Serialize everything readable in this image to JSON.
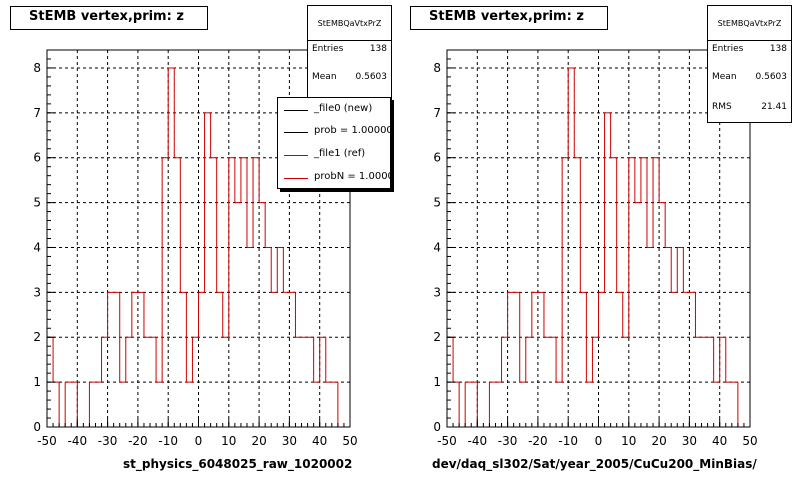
{
  "colors": {
    "hist": "#cc0000",
    "axis": "#000000"
  },
  "panels": [
    {
      "title": "StEMB  vertex,prim: z",
      "stats": {
        "name": "StEMBQaVtxPrZ",
        "rows": [
          {
            "label": "Entries",
            "value": "138"
          },
          {
            "label": "Mean",
            "value": "0.5603"
          }
        ]
      },
      "xlabel": "st_physics_6048025_raw_1020002",
      "legend": [
        {
          "text": "_file0 (new)",
          "color": "#000000"
        },
        {
          "text": "prob = 1.000000",
          "color": "#000000"
        },
        {
          "text": "_file1 (ref)",
          "color": "#cc0000"
        },
        {
          "text": "probN = 1.000000",
          "color": "#cc0000"
        }
      ]
    },
    {
      "title": "StEMB  vertex,prim: z",
      "stats": {
        "name": "StEMBQaVtxPrZ",
        "rows": [
          {
            "label": "Entries",
            "value": "138"
          },
          {
            "label": "Mean",
            "value": "0.5603"
          },
          {
            "label": "RMS",
            "value": "21.41"
          }
        ]
      },
      "xlabel": "dev/daq_sl302/Sat/year_2005/CuCu200_MinBias/"
    }
  ],
  "chart_data": [
    {
      "type": "bar",
      "xlim": [
        -50,
        50
      ],
      "ylim": [
        0,
        8.4
      ],
      "xticks": [
        "-50",
        "-40",
        "-30",
        "-20",
        "-10",
        "0",
        "10",
        "20",
        "30",
        "40",
        "50"
      ],
      "yticks": [
        "0",
        "1",
        "2",
        "3",
        "4",
        "5",
        "6",
        "7",
        "8"
      ],
      "grid": true,
      "bin_width": 2,
      "values": [
        2,
        1,
        0,
        1,
        1,
        0,
        0,
        1,
        1,
        2,
        3,
        3,
        1,
        2,
        3,
        3,
        2,
        2,
        1,
        6,
        8,
        6,
        3,
        1,
        2,
        3,
        7,
        6,
        3,
        2,
        6,
        5,
        6,
        4,
        6,
        5,
        4,
        3,
        4,
        3,
        3,
        2,
        2,
        2,
        1,
        2,
        1,
        1,
        0,
        0,
        2
      ],
      "x_start": -50,
      "title": "StEMB  vertex,prim: z",
      "xlabel": "st_physics_6048025_raw_1020002"
    },
    {
      "type": "bar",
      "xlim": [
        -50,
        50
      ],
      "ylim": [
        0,
        8.4
      ],
      "xticks": [
        "-50",
        "-40",
        "-30",
        "-20",
        "-10",
        "0",
        "10",
        "20",
        "30",
        "40",
        "50"
      ],
      "yticks": [
        "0",
        "1",
        "2",
        "3",
        "4",
        "5",
        "6",
        "7",
        "8"
      ],
      "grid": true,
      "bin_width": 2,
      "values": [
        2,
        1,
        0,
        1,
        1,
        0,
        0,
        1,
        1,
        2,
        3,
        3,
        1,
        2,
        3,
        3,
        2,
        2,
        1,
        6,
        8,
        6,
        3,
        1,
        2,
        3,
        7,
        6,
        3,
        2,
        6,
        5,
        6,
        4,
        6,
        5,
        4,
        3,
        4,
        3,
        3,
        2,
        2,
        2,
        1,
        2,
        1,
        1,
        0,
        0,
        2
      ],
      "x_start": -50,
      "title": "StEMB  vertex,prim: z",
      "xlabel": "dev/daq_sl302/Sat/year_2005/CuCu200_MinBias/"
    }
  ]
}
